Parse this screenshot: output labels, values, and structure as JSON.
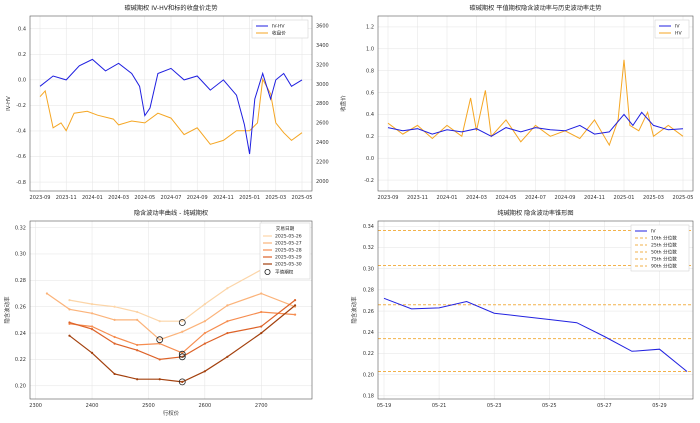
{
  "chart_data": [
    {
      "type": "line",
      "title": "碳碱期权 IV-HV和标的收盘价走势",
      "xlabel": "",
      "ylabel": "IV-HV",
      "y2label": "收盘价",
      "x_ticks": [
        "2023-09",
        "2023-11",
        "2024-01",
        "2024-03",
        "2024-05",
        "2024-07",
        "2024-09",
        "2024-11",
        "2025-01",
        "2025-03",
        "2025-05"
      ],
      "y_ticks": [
        "0.4",
        "0.2",
        "0.0",
        "-0.2",
        "-0.4",
        "-0.6",
        "-0.8"
      ],
      "y2_ticks": [
        "3600",
        "3400",
        "3200",
        "3000",
        "2800",
        "2600",
        "2400",
        "2200",
        "2000"
      ],
      "ylim": [
        -0.87,
        0.5
      ],
      "y2lim": [
        1900,
        3700
      ],
      "legend_position": "top-right",
      "grid": true,
      "series": [
        {
          "name": "IV-HV",
          "color": "#1f1fe0",
          "points": [
            [
              0.0,
              -0.05
            ],
            [
              0.05,
              0.03
            ],
            [
              0.1,
              0.0
            ],
            [
              0.15,
              0.11
            ],
            [
              0.2,
              0.16
            ],
            [
              0.25,
              0.07
            ],
            [
              0.3,
              0.13
            ],
            [
              0.35,
              0.05
            ],
            [
              0.38,
              -0.05
            ],
            [
              0.4,
              -0.28
            ],
            [
              0.42,
              -0.22
            ],
            [
              0.45,
              0.05
            ],
            [
              0.5,
              0.09
            ],
            [
              0.55,
              0.0
            ],
            [
              0.6,
              0.03
            ],
            [
              0.65,
              -0.08
            ],
            [
              0.7,
              0.0
            ],
            [
              0.75,
              -0.12
            ],
            [
              0.78,
              -0.35
            ],
            [
              0.8,
              -0.58
            ],
            [
              0.82,
              -0.15
            ],
            [
              0.85,
              0.05
            ],
            [
              0.88,
              -0.15
            ],
            [
              0.9,
              0.0
            ],
            [
              0.93,
              0.05
            ],
            [
              0.96,
              -0.05
            ],
            [
              1.0,
              0.0
            ]
          ]
        },
        {
          "name": "收盘价",
          "color": "#f5a623",
          "axis": "y2",
          "points": [
            [
              0.0,
              2870
            ],
            [
              0.02,
              2930
            ],
            [
              0.05,
              2550
            ],
            [
              0.08,
              2600
            ],
            [
              0.1,
              2520
            ],
            [
              0.13,
              2700
            ],
            [
              0.18,
              2720
            ],
            [
              0.22,
              2680
            ],
            [
              0.28,
              2640
            ],
            [
              0.3,
              2580
            ],
            [
              0.35,
              2620
            ],
            [
              0.4,
              2600
            ],
            [
              0.45,
              2700
            ],
            [
              0.5,
              2650
            ],
            [
              0.55,
              2480
            ],
            [
              0.6,
              2550
            ],
            [
              0.65,
              2380
            ],
            [
              0.7,
              2420
            ],
            [
              0.75,
              2520
            ],
            [
              0.8,
              2520
            ],
            [
              0.83,
              2600
            ],
            [
              0.85,
              3050
            ],
            [
              0.88,
              2900
            ],
            [
              0.9,
              2600
            ],
            [
              0.93,
              2500
            ],
            [
              0.96,
              2420
            ],
            [
              1.0,
              2500
            ]
          ]
        }
      ]
    },
    {
      "type": "line",
      "title": "碳碱期权 平值期权隐含波动率与历史波动率走势",
      "xlabel": "",
      "ylabel": "",
      "x_ticks": [
        "2023-09",
        "2023-11",
        "2024-01",
        "2024-03",
        "2024-05",
        "2024-07",
        "2024-09",
        "2024-11",
        "2025-01",
        "2025-03",
        "2025-05"
      ],
      "y_ticks": [
        "1.2",
        "1.0",
        "0.8",
        "0.6",
        "0.4",
        "0.2",
        "0.0",
        "-0.2"
      ],
      "ylim": [
        -0.3,
        1.3
      ],
      "legend_position": "top-right",
      "grid": true,
      "series": [
        {
          "name": "IV",
          "color": "#1f1fe0",
          "points": [
            [
              0.0,
              0.28
            ],
            [
              0.05,
              0.25
            ],
            [
              0.1,
              0.27
            ],
            [
              0.15,
              0.22
            ],
            [
              0.2,
              0.26
            ],
            [
              0.25,
              0.24
            ],
            [
              0.3,
              0.27
            ],
            [
              0.35,
              0.2
            ],
            [
              0.4,
              0.28
            ],
            [
              0.45,
              0.24
            ],
            [
              0.5,
              0.28
            ],
            [
              0.55,
              0.26
            ],
            [
              0.6,
              0.25
            ],
            [
              0.65,
              0.3
            ],
            [
              0.7,
              0.22
            ],
            [
              0.75,
              0.24
            ],
            [
              0.8,
              0.4
            ],
            [
              0.83,
              0.3
            ],
            [
              0.86,
              0.42
            ],
            [
              0.9,
              0.3
            ],
            [
              0.95,
              0.26
            ],
            [
              1.0,
              0.27
            ]
          ]
        },
        {
          "name": "HV",
          "color": "#f5a623",
          "points": [
            [
              0.0,
              0.32
            ],
            [
              0.05,
              0.22
            ],
            [
              0.1,
              0.3
            ],
            [
              0.15,
              0.18
            ],
            [
              0.2,
              0.3
            ],
            [
              0.25,
              0.2
            ],
            [
              0.28,
              0.55
            ],
            [
              0.3,
              0.25
            ],
            [
              0.33,
              0.62
            ],
            [
              0.35,
              0.2
            ],
            [
              0.4,
              0.35
            ],
            [
              0.45,
              0.15
            ],
            [
              0.5,
              0.3
            ],
            [
              0.55,
              0.2
            ],
            [
              0.6,
              0.25
            ],
            [
              0.65,
              0.18
            ],
            [
              0.7,
              0.35
            ],
            [
              0.75,
              0.12
            ],
            [
              0.78,
              0.35
            ],
            [
              0.8,
              0.9
            ],
            [
              0.82,
              0.3
            ],
            [
              0.85,
              0.25
            ],
            [
              0.88,
              0.42
            ],
            [
              0.9,
              0.2
            ],
            [
              0.95,
              0.3
            ],
            [
              1.0,
              0.2
            ]
          ]
        }
      ]
    },
    {
      "type": "line",
      "title": "隐含波动率曲线 - 纯碱期权",
      "xlabel": "行权价",
      "ylabel": "隐含波动率",
      "x_ticks": [
        "2300",
        "2400",
        "2500",
        "2600",
        "2700"
      ],
      "y_ticks": [
        "0.32",
        "0.30",
        "0.28",
        "0.26",
        "0.24",
        "0.22",
        "0.20"
      ],
      "xlim": [
        2290,
        2790
      ],
      "ylim": [
        0.19,
        0.325
      ],
      "legend_title": "交易日期",
      "legend_position": "top-right",
      "marker_label": "平值期权",
      "grid": true,
      "series": [
        {
          "name": "2025-05-26",
          "color": "#fcd5a8",
          "points": [
            [
              2360,
              0.265
            ],
            [
              2400,
              0.262
            ],
            [
              2440,
              0.26
            ],
            [
              2480,
              0.256
            ],
            [
              2520,
              0.249
            ],
            [
              2560,
              0.249
            ],
            [
              2600,
              0.262
            ],
            [
              2640,
              0.274
            ],
            [
              2700,
              0.288
            ],
            [
              2760,
              0.305
            ]
          ]
        },
        {
          "name": "2025-05-27",
          "color": "#fbb37a",
          "points": [
            [
              2320,
              0.27
            ],
            [
              2360,
              0.258
            ],
            [
              2400,
              0.255
            ],
            [
              2440,
              0.25
            ],
            [
              2480,
              0.25
            ],
            [
              2520,
              0.235
            ],
            [
              2560,
              0.241
            ],
            [
              2600,
              0.249
            ],
            [
              2640,
              0.261
            ],
            [
              2700,
              0.27
            ],
            [
              2760,
              0.26
            ]
          ]
        },
        {
          "name": "2025-05-28",
          "color": "#f68d50",
          "points": [
            [
              2360,
              0.247
            ],
            [
              2400,
              0.245
            ],
            [
              2440,
              0.237
            ],
            [
              2480,
              0.231
            ],
            [
              2520,
              0.232
            ],
            [
              2560,
              0.225
            ],
            [
              2600,
              0.24
            ],
            [
              2640,
              0.249
            ],
            [
              2700,
              0.256
            ],
            [
              2760,
              0.254
            ]
          ]
        },
        {
          "name": "2025-05-29",
          "color": "#dd6228",
          "points": [
            [
              2360,
              0.248
            ],
            [
              2400,
              0.243
            ],
            [
              2440,
              0.232
            ],
            [
              2480,
              0.227
            ],
            [
              2520,
              0.22
            ],
            [
              2560,
              0.222
            ],
            [
              2600,
              0.232
            ],
            [
              2640,
              0.24
            ],
            [
              2700,
              0.245
            ],
            [
              2760,
              0.265
            ]
          ]
        },
        {
          "name": "2025-05-30",
          "color": "#a3400d",
          "points": [
            [
              2360,
              0.238
            ],
            [
              2400,
              0.225
            ],
            [
              2440,
              0.209
            ],
            [
              2480,
              0.205
            ],
            [
              2520,
              0.205
            ],
            [
              2560,
              0.203
            ],
            [
              2600,
              0.211
            ],
            [
              2640,
              0.222
            ],
            [
              2700,
              0.24
            ],
            [
              2760,
              0.261
            ]
          ]
        }
      ],
      "atm_points": [
        [
          2520,
          0.235
        ],
        [
          2560,
          0.248
        ],
        [
          2560,
          0.224
        ],
        [
          2560,
          0.222
        ],
        [
          2560,
          0.203
        ]
      ]
    },
    {
      "type": "line",
      "title": "纯碱期权 隐含波动率锥形图",
      "xlabel": "",
      "ylabel": "隐含波动率",
      "x_ticks": [
        "05-19",
        "05-21",
        "05-23",
        "05-25",
        "05-27",
        "05-29"
      ],
      "y_ticks": [
        "0.34",
        "0.32",
        "0.30",
        "0.28",
        "0.26",
        "0.24",
        "0.22",
        "0.20",
        "0.18"
      ],
      "ylim": [
        0.177,
        0.345
      ],
      "legend_position": "top-right",
      "grid": true,
      "series": [
        {
          "name": "IV",
          "color": "#2222e0",
          "points": [
            [
              "05-19",
              0.272
            ],
            [
              "05-20",
              0.262
            ],
            [
              "05-21",
              0.263
            ],
            [
              "05-22",
              0.269
            ],
            [
              "05-23",
              0.258
            ],
            [
              "05-24",
              0.255
            ],
            [
              "05-25",
              0.252
            ],
            [
              "05-26",
              0.249
            ],
            [
              "05-27",
              0.236
            ],
            [
              "05-28",
              0.222
            ],
            [
              "05-29",
              0.224
            ],
            [
              "05-30",
              0.203
            ]
          ]
        }
      ],
      "reference_lines": [
        {
          "name": "10th 分位数",
          "value": 0.203,
          "color": "#f2b24b"
        },
        {
          "name": "25th 分位数",
          "value": 0.234,
          "color": "#f2b24b"
        },
        {
          "name": "50th 分位数",
          "value": 0.266,
          "color": "#f2b24b"
        },
        {
          "name": "75th 分位数",
          "value": 0.303,
          "color": "#f2b24b"
        },
        {
          "name": "90th 分位数",
          "value": 0.336,
          "color": "#f2b24b"
        }
      ]
    }
  ]
}
